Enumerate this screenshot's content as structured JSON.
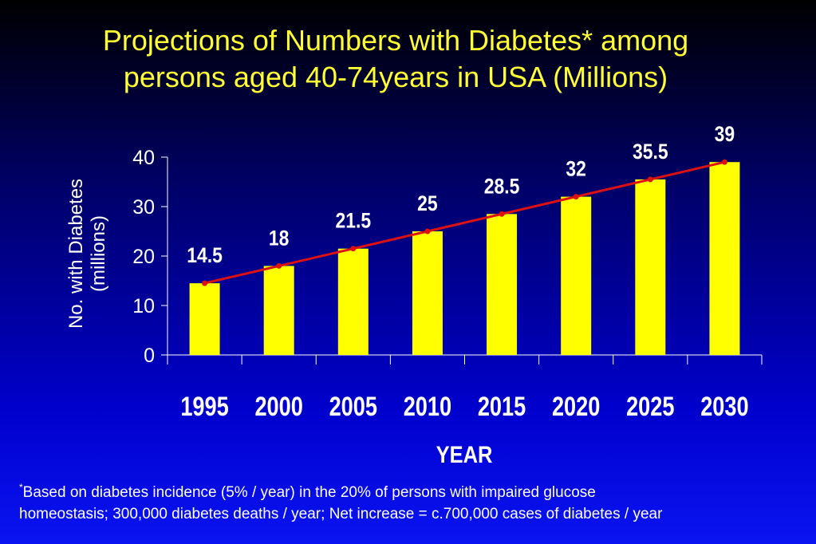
{
  "title": {
    "line1": "Projections of Numbers with Diabetes* among",
    "line2": "persons aged 40-74years in USA (Millions)"
  },
  "footnote": {
    "marker": "*",
    "line1": "Based on diabetes incidence (5% / year) in the 20% of persons with impaired glucose",
    "line2": "homeostasis; 300,000 diabetes deaths / year;  Net increase = c.700,000 cases of diabetes / year"
  },
  "colors": {
    "bar": "#ffff00",
    "line": "#dd1111",
    "title": "#ffff33",
    "text": "#ffffff"
  },
  "chart_data": {
    "type": "bar",
    "categories": [
      "1995",
      "2000",
      "2005",
      "2010",
      "2015",
      "2020",
      "2025",
      "2030"
    ],
    "values": [
      14.5,
      18,
      21.5,
      25,
      28.5,
      32,
      35.5,
      39
    ],
    "data_labels": [
      "14.5",
      "18",
      "21.5",
      "25",
      "28.5",
      "32",
      "35.5",
      "39"
    ],
    "trend_line": true,
    "xlabel": "YEAR",
    "ylabel_line1": "No. with Diabetes",
    "ylabel_line2": "(millions)",
    "ylim": [
      0,
      40
    ],
    "yticks": [
      "0",
      "10",
      "20",
      "30",
      "40"
    ],
    "grid": false,
    "legend": "none"
  }
}
